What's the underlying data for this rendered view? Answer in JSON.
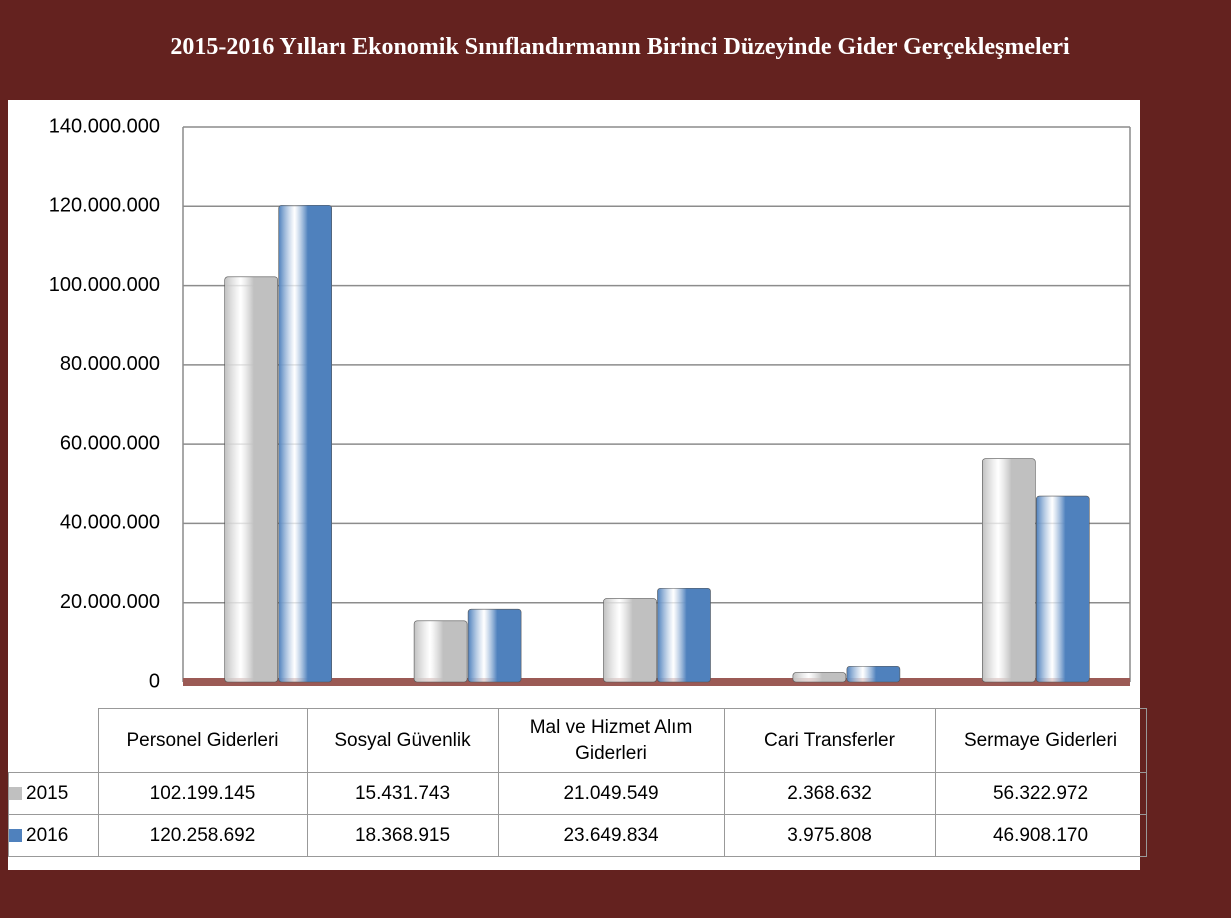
{
  "chart_data": {
    "type": "bar",
    "title": "2015-2016 Yılları Ekonomik Sınıflandırmanın Birinci Düzeyinde Gider Gerçekleşmeleri",
    "categories": [
      "Personel Giderleri",
      "Sosyal Güvenlik",
      "Mal ve Hizmet Alım Giderleri",
      "Cari Transferler",
      "Sermaye Giderleri"
    ],
    "series": [
      {
        "name": "2015",
        "color": "#c0c0c0",
        "values": [
          102199145,
          15431743,
          21049549,
          2368632,
          56322972
        ],
        "value_labels": [
          "102.199.145",
          "15.431.743",
          "21.049.549",
          "2.368.632",
          "56.322.972"
        ]
      },
      {
        "name": "2016",
        "color": "#4f81bd",
        "values": [
          120258692,
          18368915,
          23649834,
          3975808,
          46908170
        ],
        "value_labels": [
          "120.258.692",
          "18.368.915",
          "23.649.834",
          "3.975.808",
          "46.908.170"
        ]
      }
    ],
    "ylim": [
      0,
      140000000
    ],
    "yticks": [
      0,
      {
        "value": 20000000,
        "label": "20.000.000"
      },
      {
        "value": 40000000,
        "label": "40.000.000"
      },
      {
        "value": 60000000,
        "label": "60.000.000"
      },
      {
        "value": 80000000,
        "label": "80.000.000"
      },
      {
        "value": 100000000,
        "label": "100.000.000"
      },
      {
        "value": 120000000,
        "label": "120.000.000"
      },
      {
        "value": 140000000,
        "label": "140.000.000"
      }
    ],
    "grid": true
  }
}
